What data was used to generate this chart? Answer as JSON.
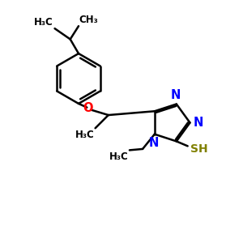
{
  "bg_color": "#ffffff",
  "bond_color": "#000000",
  "N_color": "#0000ff",
  "O_color": "#ff0000",
  "S_color": "#808000",
  "line_width": 1.8,
  "font_size": 9.5,
  "small_font_size": 8.5,
  "fig_width": 3.0,
  "fig_height": 3.0,
  "dpi": 100,
  "xlim": [
    0,
    10
  ],
  "ylim": [
    0,
    10
  ]
}
